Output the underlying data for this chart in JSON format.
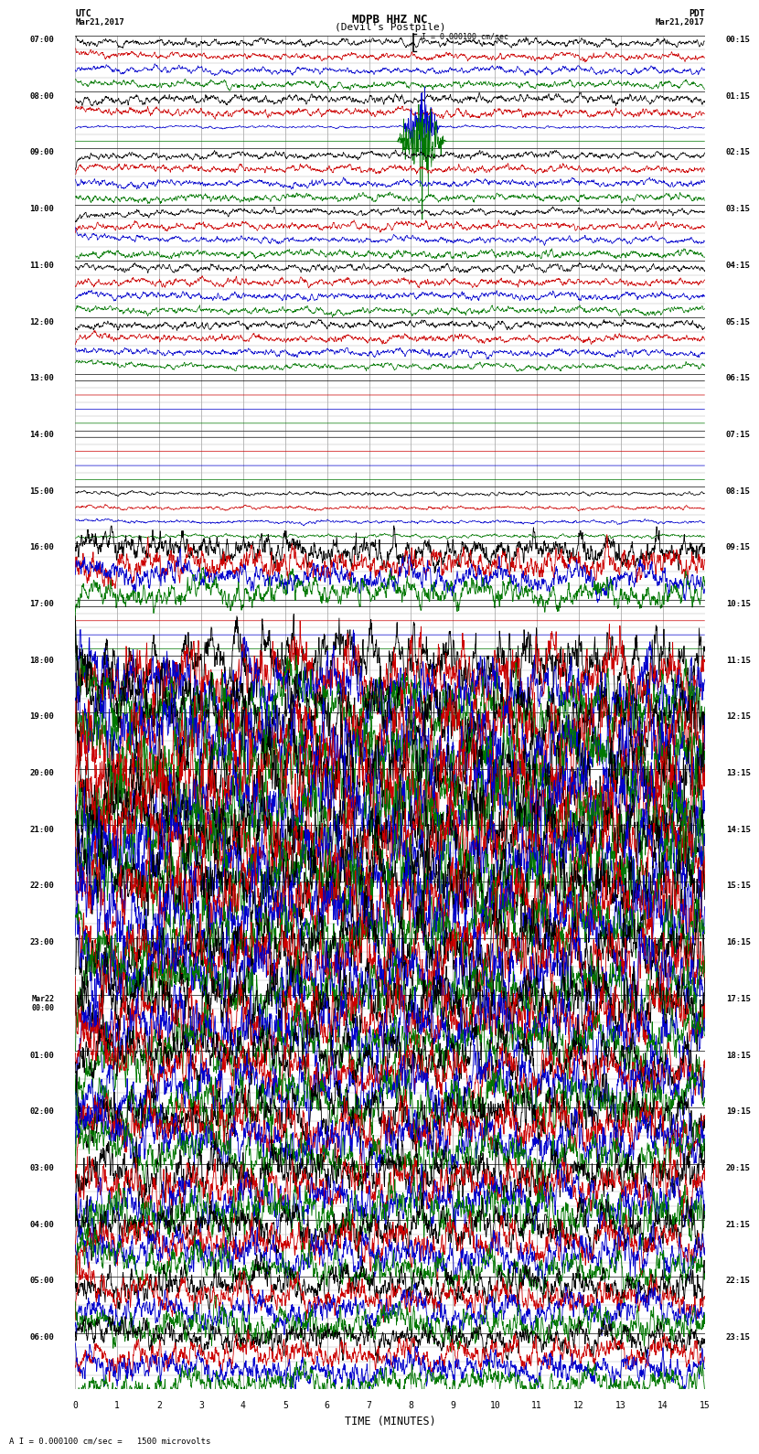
{
  "title_line1": "MDPB HHZ NC",
  "title_line2": "(Devil's Postpile)",
  "scale_label": "I = 0.000100 cm/sec",
  "footer_label": "A I = 0.000100 cm/sec =   1500 microvolts",
  "left_header": "UTC",
  "right_header": "PDT",
  "left_date": "Mar21,2017",
  "right_date": "Mar21,2017",
  "xlabel": "TIME (MINUTES)",
  "xmin": 0,
  "xmax": 15,
  "background_color": "#ffffff",
  "trace_colors": [
    "#000000",
    "#cc0000",
    "#0000cc",
    "#007700"
  ],
  "utc_hour_labels": [
    "07:00",
    "08:00",
    "09:00",
    "10:00",
    "11:00",
    "12:00",
    "13:00",
    "14:00",
    "15:00",
    "16:00",
    "17:00",
    "18:00",
    "19:00",
    "20:00",
    "21:00",
    "22:00",
    "23:00",
    "Mar22\n00:00",
    "01:00",
    "02:00",
    "03:00",
    "04:00",
    "05:00",
    "06:00"
  ],
  "pdt_hour_labels": [
    "00:15",
    "01:15",
    "02:15",
    "03:15",
    "04:15",
    "05:15",
    "06:15",
    "07:15",
    "08:15",
    "09:15",
    "10:15",
    "11:15",
    "12:15",
    "13:15",
    "14:15",
    "15:15",
    "16:15",
    "17:15",
    "18:15",
    "19:15",
    "20:15",
    "21:15",
    "22:15",
    "23:15"
  ],
  "traces_per_hour": 4,
  "n_pts": 2000,
  "seed": 12345,
  "amplitude_by_hour": [
    0.3,
    0.35,
    0.3,
    0.3,
    0.3,
    0.3,
    0.0,
    0.0,
    0.15,
    1.2,
    0.0,
    2.5,
    3.0,
    3.5,
    3.2,
    3.0,
    2.8,
    2.5,
    2.2,
    2.0,
    1.8,
    1.6,
    1.4,
    1.2
  ],
  "freq_by_color": [
    3.0,
    1.5,
    1.0,
    0.8
  ]
}
